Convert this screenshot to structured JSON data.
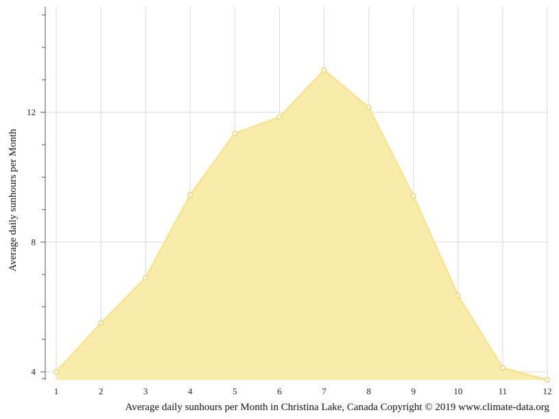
{
  "chart_data": {
    "type": "area",
    "x": [
      1,
      2,
      3,
      4,
      5,
      6,
      7,
      8,
      9,
      10,
      11,
      12
    ],
    "values": [
      4.0,
      5.5,
      6.9,
      9.45,
      11.35,
      11.85,
      13.3,
      12.15,
      9.42,
      6.35,
      4.12,
      3.75
    ],
    "title": "",
    "xlabel": "Average daily sunhours per Month in Christina Lake, Canada Copyright © 2019 www.climate-data.org",
    "ylabel": "Average daily sunhours per Month",
    "xlim": [
      1,
      12
    ],
    "ylim": [
      3.75,
      15.25
    ],
    "y_major_ticks": [
      4,
      8,
      12
    ],
    "y_minor_ticks": [
      5,
      6,
      7,
      9,
      10,
      11,
      13,
      14,
      15
    ],
    "x_ticks": [
      "1",
      "2",
      "3",
      "4",
      "5",
      "6",
      "7",
      "8",
      "9",
      "10",
      "11",
      "12"
    ],
    "grid": true,
    "colors": {
      "fill": "#f9eba5",
      "line": "#f8e28a",
      "marker_stroke": "#efd15a",
      "marker_fill": "#ffffff",
      "grid": "#d9d9d9",
      "axis": "#555555"
    }
  }
}
